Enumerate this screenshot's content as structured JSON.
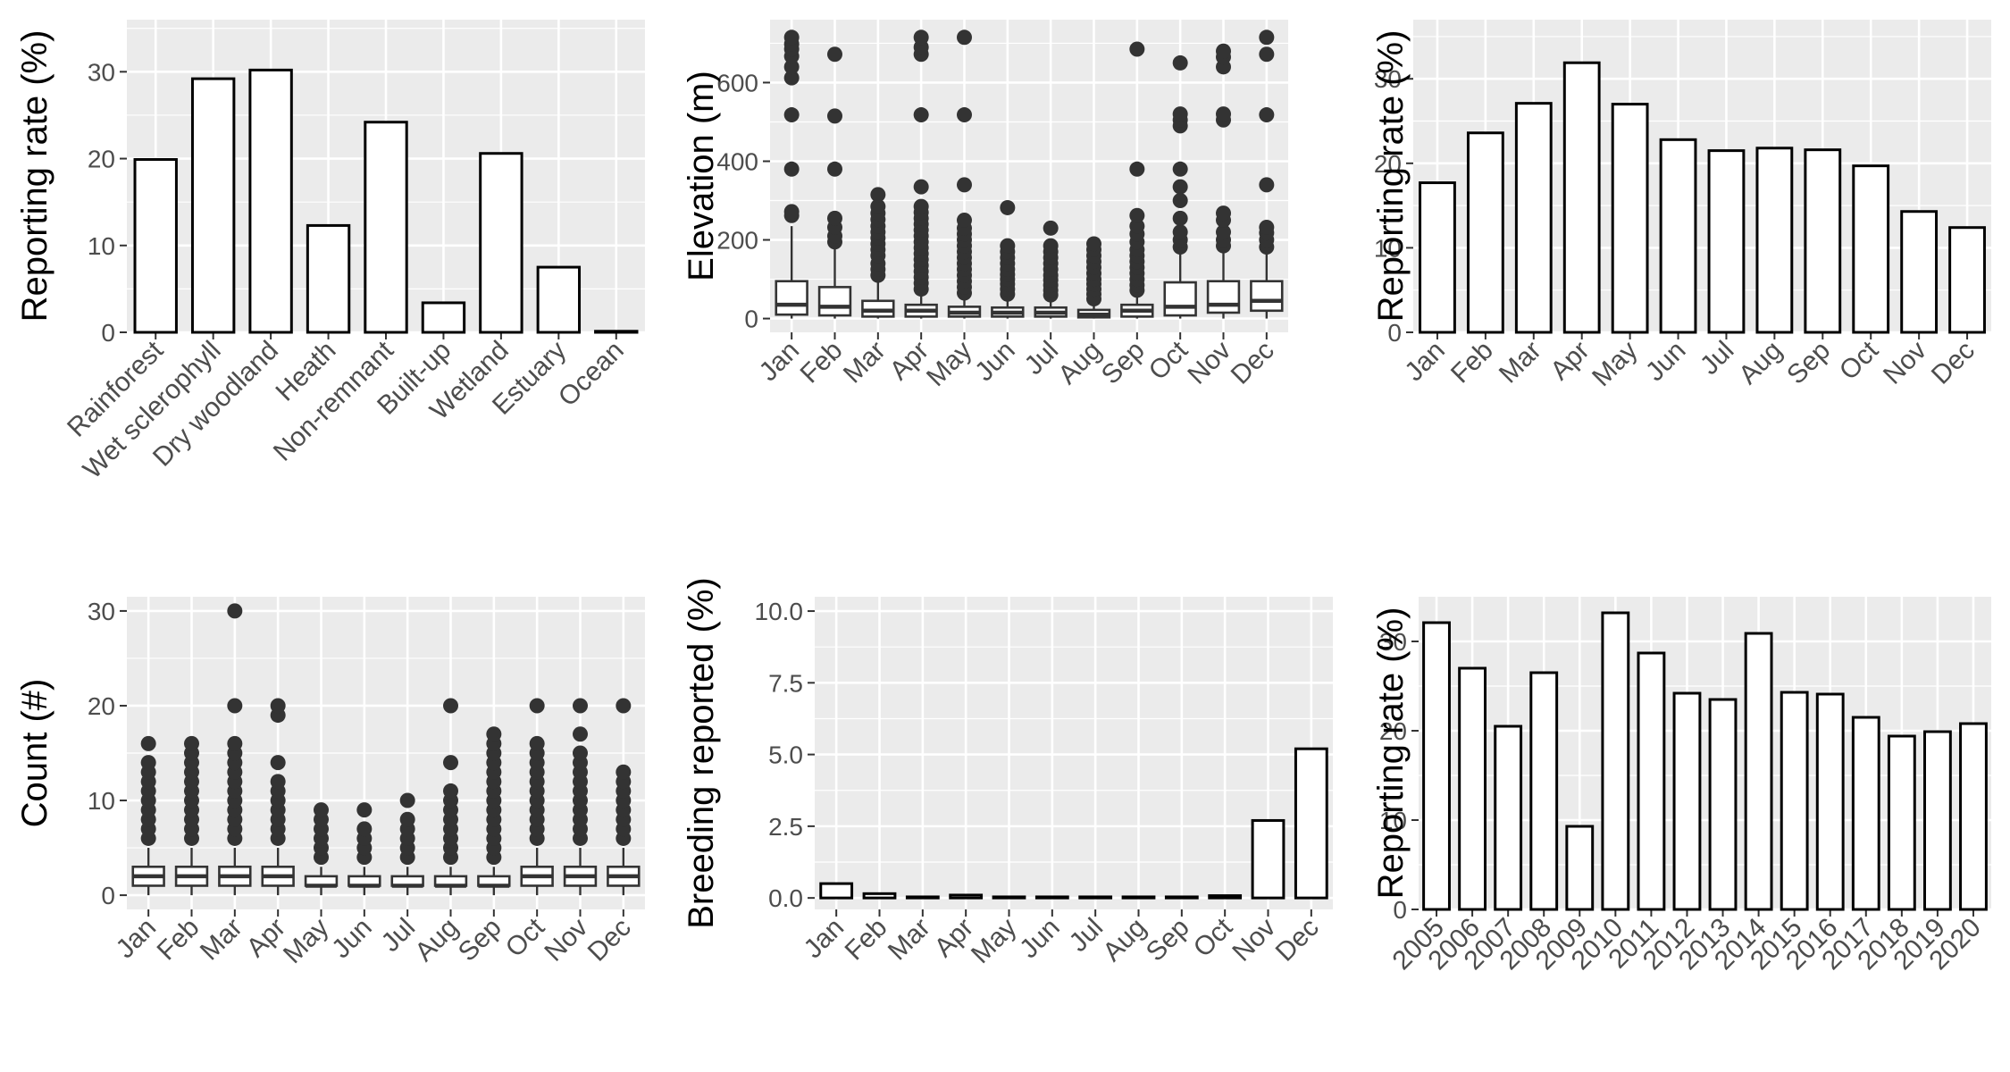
{
  "chart_data": [
    {
      "type": "bar",
      "ylabel": "Reporting rate (%)",
      "ylim": [
        0,
        36
      ],
      "yticks": [
        0,
        10,
        20,
        30
      ],
      "grid": true,
      "categories": [
        "Rainforest",
        "Wet sclerophyll",
        "Dry woodland",
        "Heath",
        "Non-remnant",
        "Built-up",
        "Wetland",
        "Estuary",
        "Ocean"
      ],
      "values": [
        19.9,
        29.2,
        30.2,
        12.3,
        24.2,
        3.4,
        20.6,
        7.5,
        0.1
      ]
    },
    {
      "type": "box",
      "ylabel": "Elevation (m)",
      "ylim": [
        -35,
        760
      ],
      "yticks": [
        0,
        200,
        400,
        600
      ],
      "grid": true,
      "categories": [
        "Jan",
        "Feb",
        "Mar",
        "Apr",
        "May",
        "Jun",
        "Jul",
        "Aug",
        "Sep",
        "Oct",
        "Nov",
        "Dec"
      ],
      "boxes": [
        {
          "min": 0,
          "q1": 10,
          "median": 35,
          "q3": 95,
          "max": 235,
          "outliers": [
            262,
            272,
            380,
            518,
            612,
            640,
            667,
            685,
            698,
            715
          ]
        },
        {
          "min": 0,
          "q1": 8,
          "median": 30,
          "q3": 80,
          "max": 180,
          "outliers": [
            195,
            210,
            232,
            255,
            380,
            515,
            672
          ]
        },
        {
          "min": 0,
          "q1": 5,
          "median": 20,
          "q3": 45,
          "max": 100,
          "outliers": [
            110,
            125,
            140,
            160,
            175,
            190,
            205,
            220,
            235,
            252,
            268,
            285,
            315
          ]
        },
        {
          "min": 0,
          "q1": 5,
          "median": 20,
          "q3": 35,
          "max": 60,
          "outliers": [
            75,
            90,
            105,
            120,
            135,
            150,
            165,
            180,
            195,
            210,
            225,
            240,
            255,
            270,
            285,
            335,
            518,
            672,
            690,
            715
          ]
        },
        {
          "min": 0,
          "q1": 5,
          "median": 15,
          "q3": 30,
          "max": 55,
          "outliers": [
            65,
            80,
            95,
            110,
            125,
            140,
            155,
            170,
            185,
            200,
            215,
            230,
            250,
            340,
            518,
            715
          ]
        },
        {
          "min": 0,
          "q1": 5,
          "median": 15,
          "q3": 28,
          "max": 50,
          "outliers": [
            62,
            75,
            88,
            100,
            112,
            125,
            140,
            155,
            170,
            185,
            282
          ]
        },
        {
          "min": 0,
          "q1": 5,
          "median": 15,
          "q3": 28,
          "max": 50,
          "outliers": [
            60,
            72,
            85,
            98,
            110,
            125,
            140,
            155,
            170,
            185,
            230
          ]
        },
        {
          "min": 0,
          "q1": 3,
          "median": 10,
          "q3": 22,
          "max": 40,
          "outliers": [
            50,
            62,
            75,
            88,
            100,
            115,
            130,
            145,
            160,
            175,
            190
          ]
        },
        {
          "min": 0,
          "q1": 5,
          "median": 20,
          "q3": 35,
          "max": 60,
          "outliers": [
            72,
            85,
            100,
            115,
            130,
            145,
            160,
            175,
            195,
            215,
            235,
            262,
            380,
            685
          ]
        },
        {
          "min": 0,
          "q1": 8,
          "median": 30,
          "q3": 92,
          "max": 170,
          "outliers": [
            182,
            200,
            220,
            255,
            300,
            335,
            380,
            490,
            505,
            520,
            650
          ]
        },
        {
          "min": 0,
          "q1": 15,
          "median": 35,
          "q3": 95,
          "max": 175,
          "outliers": [
            185,
            200,
            220,
            250,
            268,
            505,
            520,
            640,
            665,
            680
          ]
        },
        {
          "min": 0,
          "q1": 20,
          "median": 45,
          "q3": 95,
          "max": 170,
          "outliers": [
            182,
            200,
            218,
            232,
            340,
            518,
            672,
            715
          ]
        }
      ]
    },
    {
      "type": "bar",
      "ylabel": "Reporting rate (%)",
      "ylim": [
        0,
        37
      ],
      "yticks": [
        0,
        10,
        20,
        30
      ],
      "grid": true,
      "categories": [
        "Jan",
        "Feb",
        "Mar",
        "Apr",
        "May",
        "Jun",
        "Jul",
        "Aug",
        "Sep",
        "Oct",
        "Nov",
        "Dec"
      ],
      "values": [
        17.7,
        23.6,
        27.1,
        31.9,
        27.0,
        22.8,
        21.5,
        21.8,
        21.6,
        19.7,
        14.3,
        12.4
      ]
    },
    {
      "type": "box",
      "ylabel": "Count (#)",
      "ylim": [
        -1.5,
        31.5
      ],
      "yticks": [
        0,
        10,
        20,
        30
      ],
      "grid": true,
      "categories": [
        "Jan",
        "Feb",
        "Mar",
        "Apr",
        "May",
        "Jun",
        "Jul",
        "Aug",
        "Sep",
        "Oct",
        "Nov",
        "Dec"
      ],
      "boxes": [
        {
          "min": 0,
          "q1": 1,
          "median": 2,
          "q3": 3,
          "max": 5,
          "outliers": [
            6,
            7,
            8,
            9,
            10,
            11,
            12,
            13,
            14,
            16
          ]
        },
        {
          "min": 0,
          "q1": 1,
          "median": 2,
          "q3": 3,
          "max": 5,
          "outliers": [
            6,
            7,
            8,
            9,
            10,
            11,
            12,
            13,
            14,
            15,
            16
          ]
        },
        {
          "min": 0,
          "q1": 1,
          "median": 2,
          "q3": 3,
          "max": 5,
          "outliers": [
            6,
            7,
            8,
            9,
            10,
            11,
            12,
            13,
            14,
            15,
            16,
            20,
            30
          ]
        },
        {
          "min": 0,
          "q1": 1,
          "median": 2,
          "q3": 3,
          "max": 5,
          "outliers": [
            6,
            7,
            8,
            9,
            10,
            11,
            12,
            14,
            19,
            20
          ]
        },
        {
          "min": 0,
          "q1": 1,
          "median": 1,
          "q3": 2,
          "max": 3,
          "outliers": [
            4,
            5,
            6,
            7,
            8,
            9
          ]
        },
        {
          "min": 0,
          "q1": 1,
          "median": 1,
          "q3": 2,
          "max": 3,
          "outliers": [
            4,
            5,
            6,
            7,
            9
          ]
        },
        {
          "min": 0,
          "q1": 1,
          "median": 1,
          "q3": 2,
          "max": 3,
          "outliers": [
            4,
            5,
            6,
            7,
            8,
            10
          ]
        },
        {
          "min": 0,
          "q1": 1,
          "median": 1,
          "q3": 2,
          "max": 3,
          "outliers": [
            4,
            5,
            6,
            7,
            8,
            9,
            10,
            11,
            14,
            20
          ]
        },
        {
          "min": 0,
          "q1": 1,
          "median": 1,
          "q3": 2,
          "max": 3,
          "outliers": [
            4,
            5,
            6,
            7,
            8,
            9,
            10,
            11,
            12,
            13,
            14,
            15,
            16,
            17
          ]
        },
        {
          "min": 0,
          "q1": 1,
          "median": 2,
          "q3": 3,
          "max": 5,
          "outliers": [
            6,
            7,
            8,
            9,
            10,
            11,
            12,
            13,
            14,
            15,
            16,
            20
          ]
        },
        {
          "min": 0,
          "q1": 1,
          "median": 2,
          "q3": 3,
          "max": 5,
          "outliers": [
            6,
            7,
            8,
            9,
            10,
            11,
            12,
            13,
            14,
            15,
            17,
            20
          ]
        },
        {
          "min": 0,
          "q1": 1,
          "median": 2,
          "q3": 3,
          "max": 5,
          "outliers": [
            6,
            7,
            8,
            9,
            10,
            11,
            12,
            13,
            20
          ]
        }
      ]
    },
    {
      "type": "bar",
      "ylabel": "Breeding reported (%)",
      "ylim": [
        -0.4,
        10.5
      ],
      "yticks": [
        0,
        2.5,
        5,
        7.5,
        10
      ],
      "yticklabels": [
        "0.0",
        "2.5",
        "5.0",
        "7.5",
        "10.0"
      ],
      "grid": true,
      "categories": [
        "Jan",
        "Feb",
        "Mar",
        "Apr",
        "May",
        "Jun",
        "Jul",
        "Aug",
        "Sep",
        "Oct",
        "Nov",
        "Dec"
      ],
      "values": [
        0.5,
        0.15,
        0.03,
        0.1,
        0.03,
        0.02,
        0.02,
        0.02,
        0.02,
        0.08,
        2.7,
        5.2
      ]
    },
    {
      "type": "bar",
      "ylabel": "Reporting rate (%)",
      "ylim": [
        0,
        35
      ],
      "yticks": [
        0,
        10,
        20,
        30
      ],
      "grid": true,
      "categories": [
        "2005",
        "2006",
        "2007",
        "2008",
        "2009",
        "2010",
        "2011",
        "2012",
        "2013",
        "2014",
        "2015",
        "2016",
        "2017",
        "2018",
        "2019",
        "2020"
      ],
      "values": [
        32.1,
        27.0,
        20.5,
        26.5,
        9.3,
        33.2,
        28.7,
        24.2,
        23.5,
        30.9,
        24.3,
        24.1,
        21.5,
        19.4,
        19.9,
        20.8
      ]
    }
  ]
}
